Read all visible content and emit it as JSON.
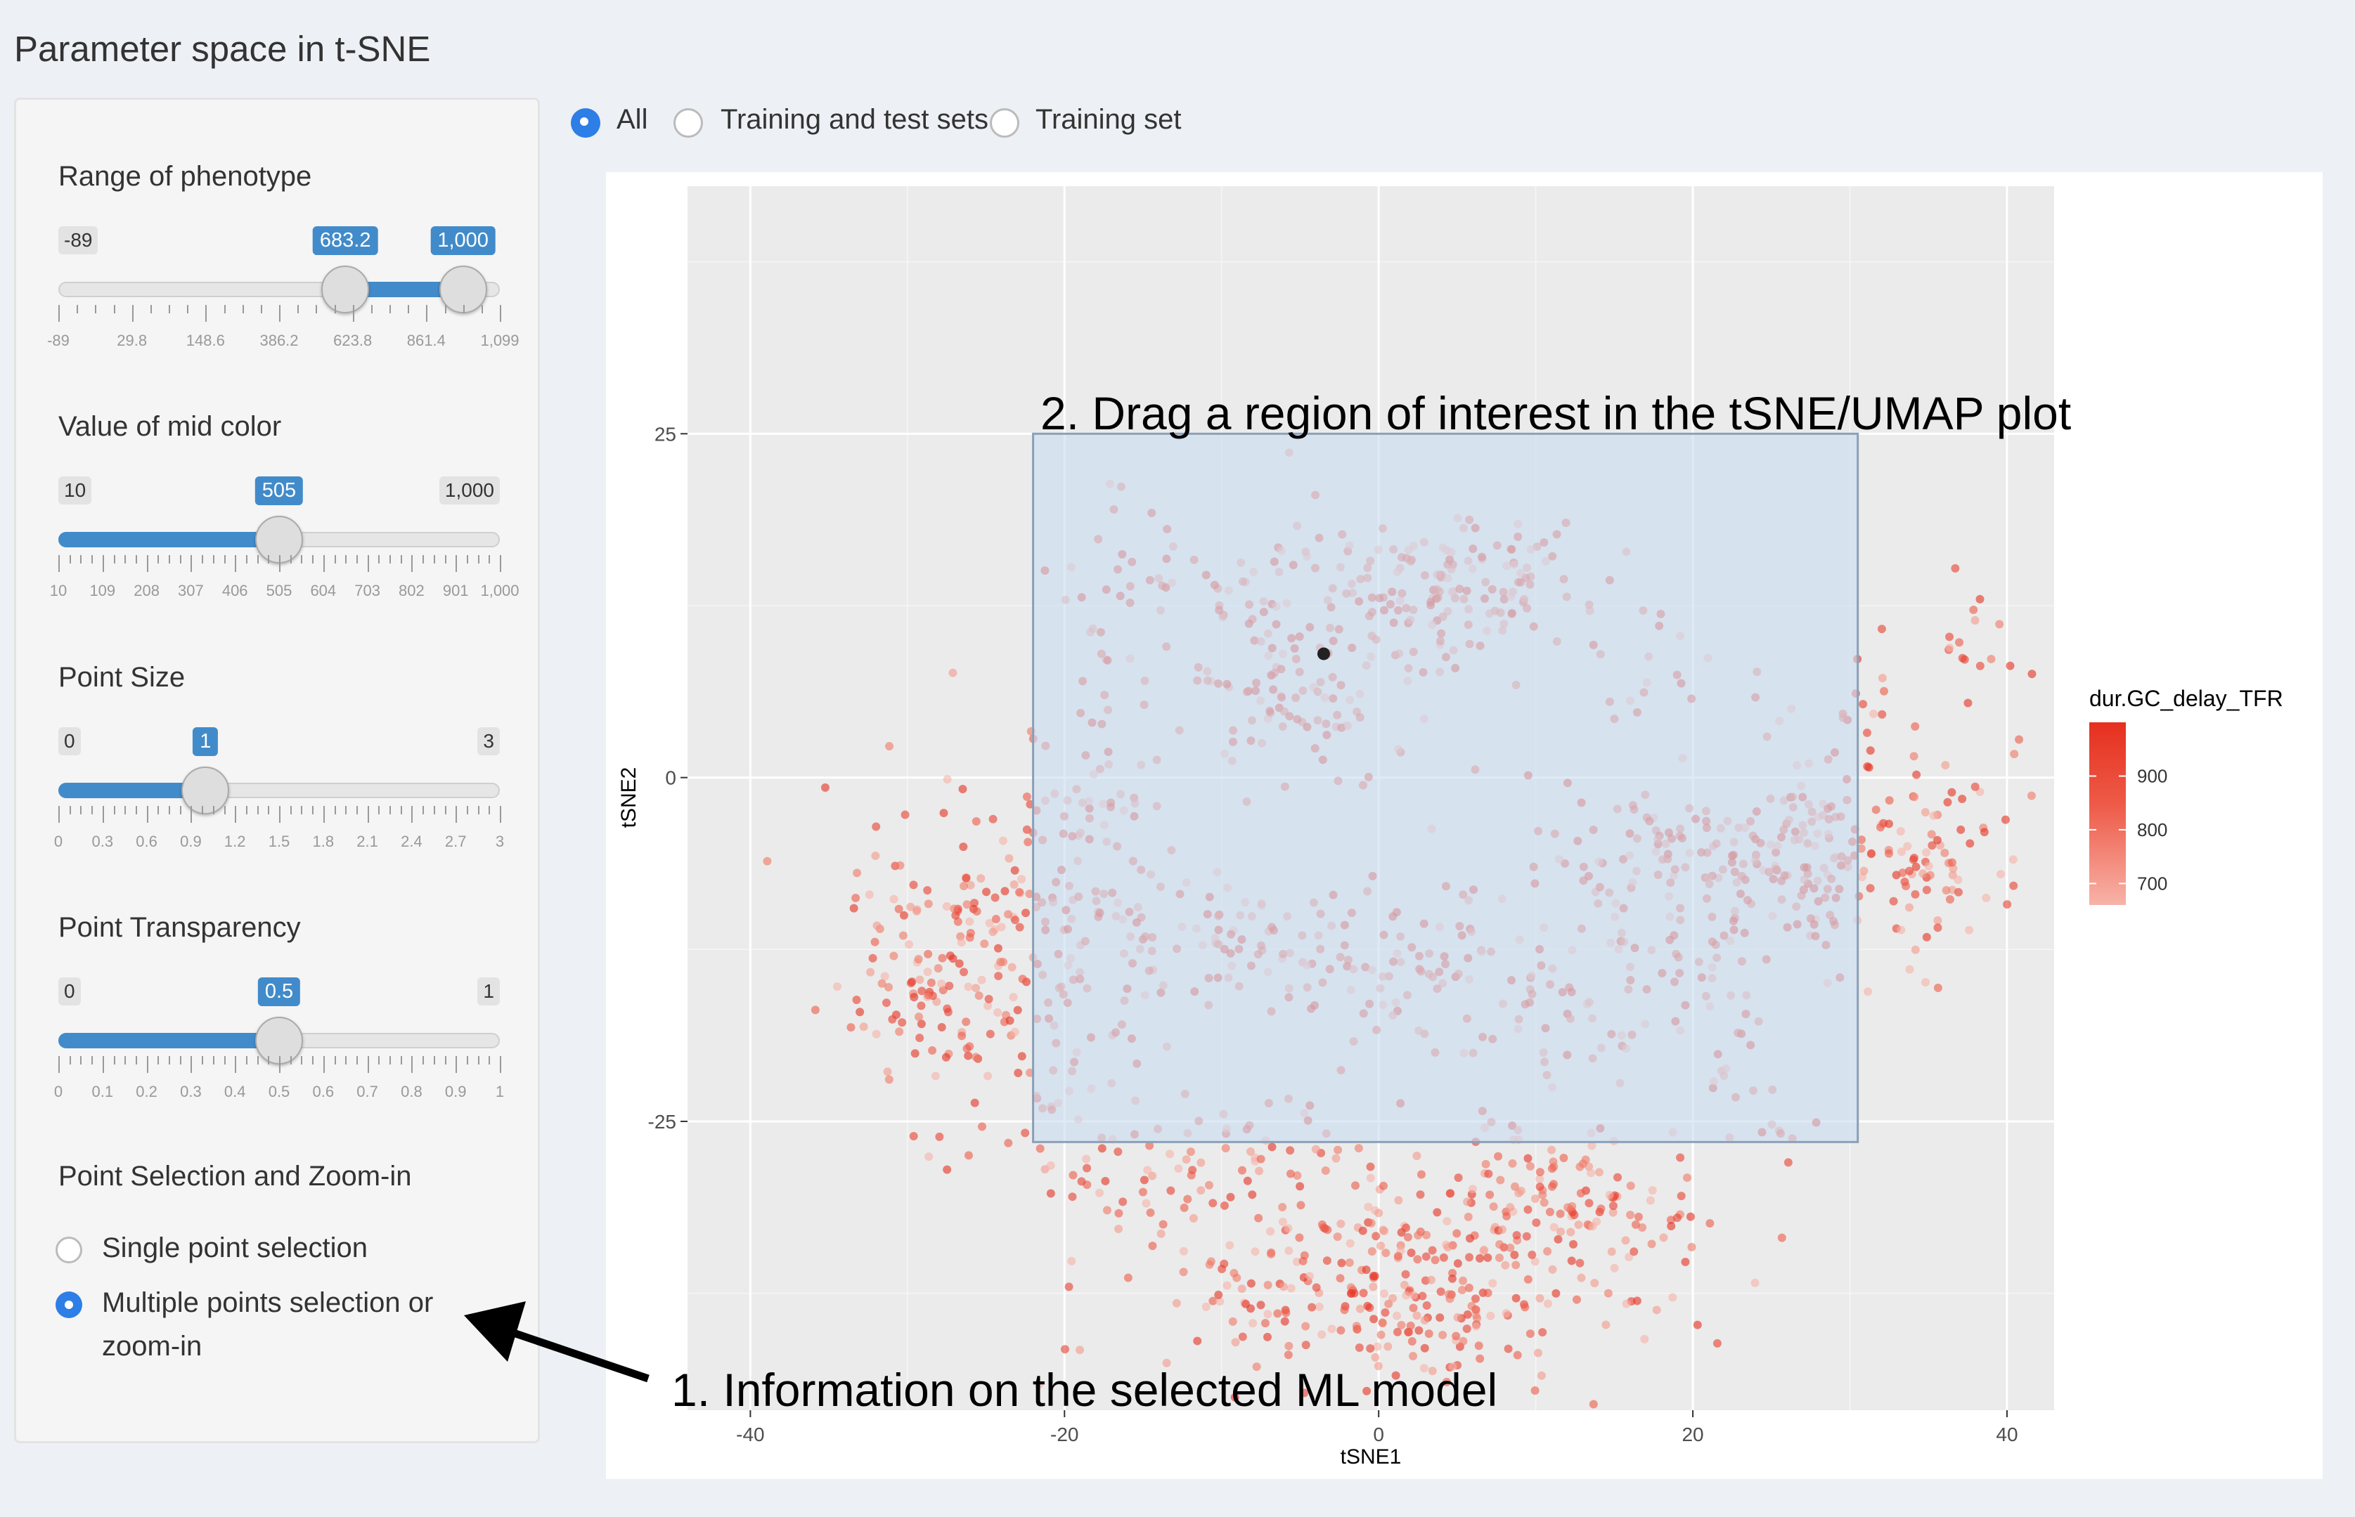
{
  "page_title": "Parameter space in t-SNE",
  "top_radio": {
    "options": [
      "All",
      "Training and test sets",
      "Training set"
    ],
    "selected": 0
  },
  "sliders": [
    {
      "label": "Range of phenotype",
      "min_label": "-89",
      "val_a": "683.2",
      "val_b": "1,000",
      "min": -89,
      "max": 1099,
      "a": 683.2,
      "b": 1000,
      "grid": [
        "-89",
        "29.8",
        "148.6",
        "386.2",
        "623.8",
        "861.4",
        "1,099"
      ]
    },
    {
      "label": "Value of mid color",
      "min_label": "10",
      "max_label": "1,000",
      "val": "505",
      "min": 10,
      "max": 1000,
      "v": 505,
      "grid": [
        "10",
        "109",
        "208",
        "307",
        "406",
        "505",
        "604",
        "703",
        "802",
        "901",
        "1,000"
      ]
    },
    {
      "label": "Point Size",
      "min_label": "0",
      "max_label": "3",
      "val": "1",
      "min": 0,
      "max": 3,
      "v": 1,
      "grid": [
        "0",
        "0.3",
        "0.6",
        "0.9",
        "1.2",
        "1.5",
        "1.8",
        "2.1",
        "2.4",
        "2.7",
        "3"
      ]
    },
    {
      "label": "Point Transparency",
      "min_label": "0",
      "max_label": "1",
      "val": "0.5",
      "min": 0,
      "max": 1,
      "v": 0.5,
      "grid": [
        "0",
        "0.1",
        "0.2",
        "0.3",
        "0.4",
        "0.5",
        "0.6",
        "0.7",
        "0.8",
        "0.9",
        "1"
      ]
    }
  ],
  "selection": {
    "label": "Point Selection and Zoom-in",
    "options": [
      "Single point selection",
      "Multiple points selection or",
      "zoom-in"
    ],
    "selected": 1
  },
  "annotations": {
    "drag": "2. Drag a region of interest in the tSNE/UMAP plot",
    "info": "1. Information on the selected ML model"
  },
  "chart_data": {
    "type": "scatter",
    "xlabel": "tSNE1",
    "ylabel": "tSNE2",
    "xlim": [
      -44,
      43
    ],
    "ylim": [
      -46,
      43
    ],
    "x_ticks": [
      "-40",
      "-20",
      "0",
      "20",
      "40"
    ],
    "x_tick_values": [
      -40,
      -20,
      0,
      20,
      40
    ],
    "y_ticks": [
      "-25",
      "0",
      "25"
    ],
    "y_tick_values": [
      -25,
      0,
      25
    ],
    "grid": true,
    "legend": {
      "title": "dur.GC_delay_TFR",
      "ticks": [
        "900",
        "800",
        "700"
      ],
      "tick_values": [
        900,
        800,
        700
      ],
      "range": [
        660,
        1000
      ],
      "colors": [
        "#f7b3a8",
        "#ee5a48",
        "#e6301f"
      ],
      "placement": "right"
    },
    "selection_box": {
      "x": [
        -22,
        30.5
      ],
      "y": [
        -26.5,
        25
      ]
    },
    "highlighted_point": {
      "x": -3.5,
      "y": 9
    },
    "clusters": [
      {
        "cx": -25,
        "cy": -13,
        "sx": 4,
        "sy": 6,
        "n": 160
      },
      {
        "cx": -30,
        "cy": -14,
        "sx": 2.5,
        "sy": 5,
        "n": 50
      },
      {
        "cx": -19,
        "cy": -10,
        "sx": 2.5,
        "sy": 12,
        "n": 110
      },
      {
        "cx": -16,
        "cy": 15,
        "sx": 2.5,
        "sy": 3,
        "n": 25
      },
      {
        "cx": -7,
        "cy": 11,
        "sx": 5,
        "sy": 4,
        "n": 90
      },
      {
        "cx": 3,
        "cy": 13,
        "sx": 5,
        "sy": 3,
        "n": 120
      },
      {
        "cx": -5,
        "cy": 5,
        "sx": 3,
        "sy": 2,
        "n": 45
      },
      {
        "cx": -9,
        "cy": -12,
        "sx": 4,
        "sy": 2.5,
        "n": 70
      },
      {
        "cx": 2,
        "cy": -14,
        "sx": 4,
        "sy": 3,
        "n": 70
      },
      {
        "cx": 10,
        "cy": -17,
        "sx": 2.5,
        "sy": 5,
        "n": 50
      },
      {
        "cx": 20,
        "cy": -6,
        "sx": 5,
        "sy": 2.5,
        "n": 110
      },
      {
        "cx": 28,
        "cy": -6,
        "sx": 3,
        "sy": 4,
        "n": 90
      },
      {
        "cx": 35,
        "cy": -5,
        "sx": 3,
        "sy": 4,
        "n": 90
      },
      {
        "cx": 19,
        "cy": -15,
        "sx": 3,
        "sy": 3,
        "n": 50
      },
      {
        "cx": 25,
        "cy": -24,
        "sx": 2,
        "sy": 1.5,
        "n": 15
      },
      {
        "cx": 2,
        "cy": -37,
        "sx": 7,
        "sy": 4,
        "n": 300
      },
      {
        "cx": 12,
        "cy": -31,
        "sx": 5,
        "sy": 3,
        "n": 100
      },
      {
        "cx": -12,
        "cy": -28,
        "sx": 5,
        "sy": 3,
        "n": 80
      },
      {
        "cx": 8,
        "cy": 15,
        "sx": 2,
        "sy": 2,
        "n": 30
      },
      {
        "cx": 19,
        "cy": 7,
        "sx": 3,
        "sy": 2,
        "n": 20
      },
      {
        "cx": 30,
        "cy": 5,
        "sx": 2,
        "sy": 2,
        "n": 15
      },
      {
        "cx": 37,
        "cy": 10,
        "sx": 2,
        "sy": 3,
        "n": 15
      }
    ]
  }
}
